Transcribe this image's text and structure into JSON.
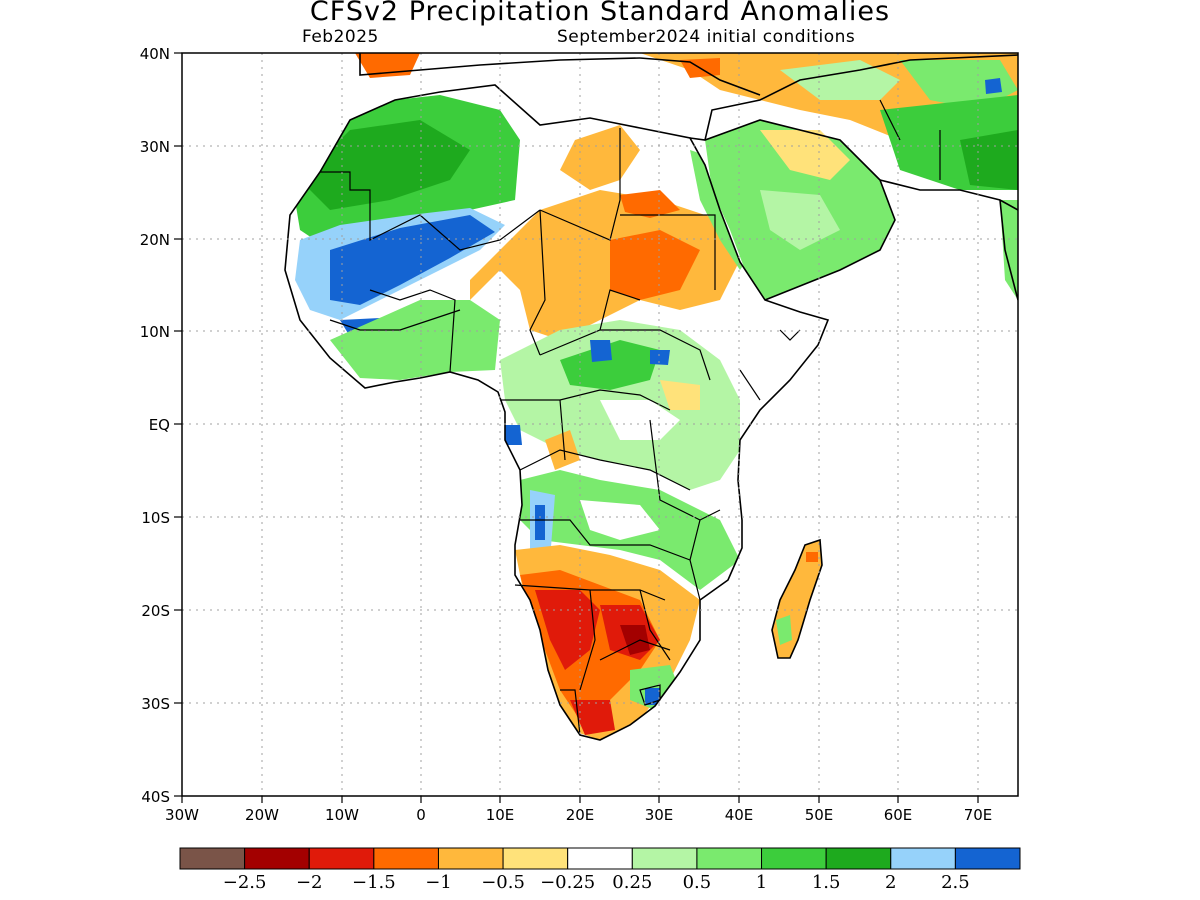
{
  "title": "CFSv2 Precipitation Standard Anomalies",
  "subtitle_left": "Feb2025",
  "subtitle_right": "September2024 initial conditions",
  "y_ticks": [
    "40N",
    "30N",
    "20N",
    "10N",
    "EQ",
    "10S",
    "20S",
    "30S",
    "40S"
  ],
  "x_ticks": [
    "30W",
    "20W",
    "10W",
    "0",
    "10E",
    "20E",
    "30E",
    "40E",
    "50E",
    "60E",
    "70E"
  ],
  "colorbar": {
    "colors": [
      "#7a5448",
      "#a30000",
      "#e01a0a",
      "#ff6a00",
      "#ffb83c",
      "#ffe27a",
      "#ffffff",
      "#b4f5a5",
      "#7aea6e",
      "#3ccd3c",
      "#1eaa1e",
      "#96d2fa",
      "#1464d2"
    ],
    "labels": [
      "−2.5",
      "−2",
      "−1.5",
      "−1",
      "−0.5",
      "−0.25",
      "0.25",
      "0.5",
      "1",
      "1.5",
      "2",
      "2.5"
    ]
  }
}
